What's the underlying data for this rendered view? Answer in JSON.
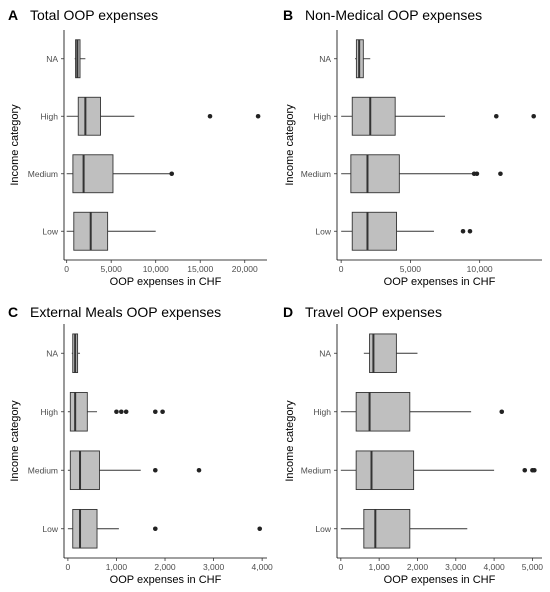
{
  "chart_data": [
    {
      "type": "boxplot",
      "panel_label": "A",
      "title": "Total OOP expenses",
      "xlabel": "OOP expenses in CHF",
      "ylabel": "Income category",
      "categories": [
        "Low",
        "Medium",
        "High",
        "NA"
      ],
      "xlim": [
        -300,
        22500
      ],
      "xticks": [
        0,
        5000,
        10000,
        15000,
        20000
      ],
      "xtick_labels": [
        "0",
        "5,000",
        "10,000",
        "15,000",
        "20,000"
      ],
      "boxes": [
        {
          "category": "Low",
          "whisker_low": 0,
          "q1": 800,
          "median": 2700,
          "q3": 4600,
          "whisker_high": 10000,
          "outliers": []
        },
        {
          "category": "Medium",
          "whisker_low": 0,
          "q1": 700,
          "median": 1900,
          "q3": 5200,
          "whisker_high": 11800,
          "outliers": [
            11800
          ]
        },
        {
          "category": "High",
          "whisker_low": 0,
          "q1": 1300,
          "median": 2100,
          "q3": 3800,
          "whisker_high": 7600,
          "outliers": [
            16100,
            21500
          ]
        },
        {
          "category": "NA",
          "whisker_low": 900,
          "q1": 1000,
          "median": 1200,
          "q3": 1500,
          "whisker_high": 2100,
          "outliers": []
        }
      ]
    },
    {
      "type": "boxplot",
      "panel_label": "B",
      "title": "Non-Medical OOP expenses",
      "xlabel": "OOP expenses in CHF",
      "ylabel": "Income category",
      "categories": [
        "Low",
        "Medium",
        "High",
        "NA"
      ],
      "xlim": [
        -300,
        14500
      ],
      "xticks": [
        0,
        5000,
        10000
      ],
      "xtick_labels": [
        "0",
        "5,000",
        "10,000"
      ],
      "boxes": [
        {
          "category": "Low",
          "whisker_low": 0,
          "q1": 800,
          "median": 1900,
          "q3": 4000,
          "whisker_high": 6700,
          "outliers": [
            8800,
            9300
          ]
        },
        {
          "category": "Medium",
          "whisker_low": 0,
          "q1": 700,
          "median": 1900,
          "q3": 4200,
          "whisker_high": 9500,
          "outliers": [
            9600,
            9800,
            11500
          ]
        },
        {
          "category": "High",
          "whisker_low": 0,
          "q1": 800,
          "median": 2100,
          "q3": 3900,
          "whisker_high": 7500,
          "outliers": [
            11200,
            13900
          ]
        },
        {
          "category": "NA",
          "whisker_low": 1000,
          "q1": 1100,
          "median": 1300,
          "q3": 1600,
          "whisker_high": 2100,
          "outliers": []
        }
      ]
    },
    {
      "type": "boxplot",
      "panel_label": "C",
      "title": "External Meals OOP expenses",
      "xlabel": "OOP expenses in CHF",
      "ylabel": "Income category",
      "categories": [
        "Low",
        "Medium",
        "High",
        "NA"
      ],
      "xlim": [
        -80,
        4100
      ],
      "xticks": [
        0,
        1000,
        2000,
        3000,
        4000
      ],
      "xtick_labels": [
        "0",
        "1,000",
        "2,000",
        "3,000",
        "4,000"
      ],
      "boxes": [
        {
          "category": "Low",
          "whisker_low": 0,
          "q1": 100,
          "median": 250,
          "q3": 600,
          "whisker_high": 1050,
          "outliers": [
            1800,
            3950
          ]
        },
        {
          "category": "Medium",
          "whisker_low": 0,
          "q1": 50,
          "median": 250,
          "q3": 650,
          "whisker_high": 1500,
          "outliers": [
            1800,
            2700
          ]
        },
        {
          "category": "High",
          "whisker_low": 0,
          "q1": 50,
          "median": 150,
          "q3": 400,
          "whisker_high": 600,
          "outliers": [
            1000,
            1100,
            1200,
            1800,
            1950
          ]
        },
        {
          "category": "NA",
          "whisker_low": 80,
          "q1": 100,
          "median": 150,
          "q3": 200,
          "whisker_high": 250,
          "outliers": []
        }
      ]
    },
    {
      "type": "boxplot",
      "panel_label": "D",
      "title": "Travel OOP expenses",
      "xlabel": "OOP expenses in CHF",
      "ylabel": "Income category",
      "categories": [
        "Low",
        "Medium",
        "High",
        "NA"
      ],
      "xlim": [
        -100,
        5250
      ],
      "xticks": [
        0,
        1000,
        2000,
        3000,
        4000,
        5000
      ],
      "xtick_labels": [
        "0",
        "1,000",
        "2,000",
        "3,000",
        "4,000",
        "5,000"
      ],
      "boxes": [
        {
          "category": "Low",
          "whisker_low": 0,
          "q1": 600,
          "median": 900,
          "q3": 1800,
          "whisker_high": 3300,
          "outliers": []
        },
        {
          "category": "Medium",
          "whisker_low": 0,
          "q1": 400,
          "median": 800,
          "q3": 1900,
          "whisker_high": 4000,
          "outliers": [
            4800,
            5000,
            5050
          ]
        },
        {
          "category": "High",
          "whisker_low": 0,
          "q1": 400,
          "median": 750,
          "q3": 1800,
          "whisker_high": 3400,
          "outliers": [
            4200
          ]
        },
        {
          "category": "NA",
          "whisker_low": 600,
          "q1": 750,
          "median": 850,
          "q3": 1450,
          "whisker_high": 2000,
          "outliers": []
        }
      ]
    }
  ]
}
